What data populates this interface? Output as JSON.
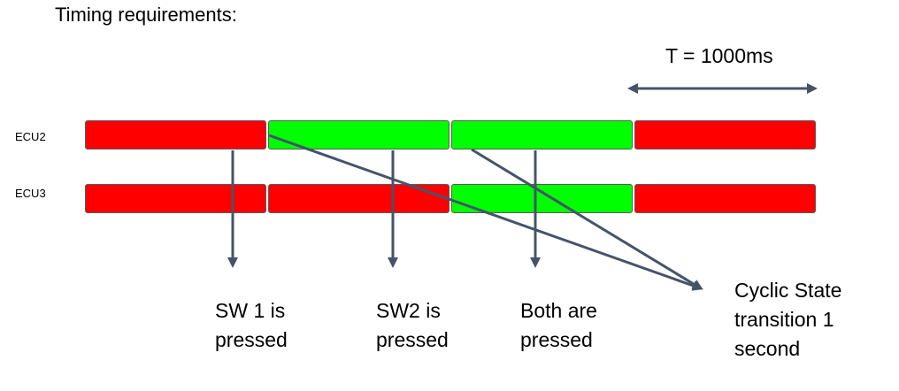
{
  "title": "Timing requirements:",
  "period_label": "T = 1000ms",
  "colors": {
    "off": "#ff0000",
    "on": "#00ff00",
    "arrow": "#44546a"
  },
  "rows": [
    {
      "label": "ECU2",
      "segments": [
        "off",
        "on",
        "on",
        "off"
      ]
    },
    {
      "label": "ECU3",
      "segments": [
        "off",
        "off",
        "on",
        "off"
      ]
    }
  ],
  "captions": {
    "sw1": [
      "SW 1 is",
      "pressed"
    ],
    "sw2": [
      "SW2 is",
      "pressed"
    ],
    "both": [
      "Both are",
      "pressed"
    ],
    "cyclic": [
      "Cyclic State",
      "transition 1",
      "second"
    ]
  }
}
